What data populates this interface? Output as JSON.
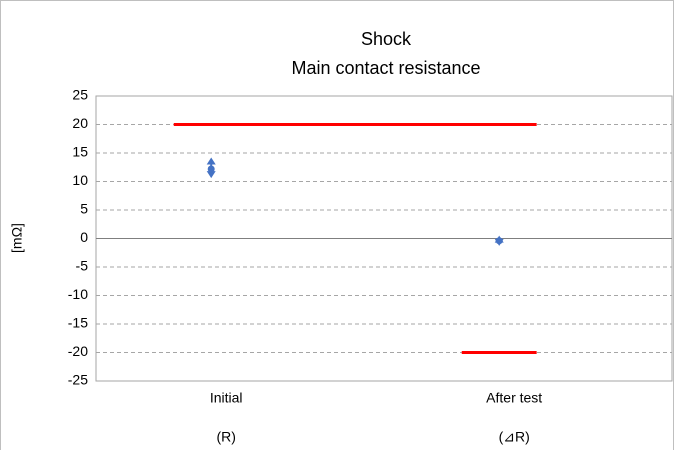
{
  "chart_data": {
    "type": "range",
    "title": "Shock",
    "subtitle": "Main contact resistance",
    "y_label": "[mΩ]",
    "categories": [
      "Initial",
      "After test"
    ],
    "category_notes": [
      "(R)",
      "(⊿R)"
    ],
    "ylim": [
      -25,
      25
    ],
    "yticks": [
      -25,
      -20,
      -15,
      -10,
      -5,
      0,
      5,
      10,
      15,
      20,
      25
    ],
    "grid": true,
    "limits": [
      {
        "color": "#ff0000",
        "values": [
          20,
          20
        ]
      },
      {
        "color": "#ff0000",
        "values": [
          null,
          -20
        ]
      }
    ],
    "series": [
      {
        "color": "#4472c4",
        "marker": "triangle",
        "values": [
          13.5,
          -0.2
        ]
      },
      {
        "color": "#4472c4",
        "marker": "circle",
        "values": [
          12.2,
          -0.4
        ]
      },
      {
        "color": "#4472c4",
        "marker": "triangle-down",
        "values": [
          11.3,
          -0.6
        ]
      }
    ]
  }
}
